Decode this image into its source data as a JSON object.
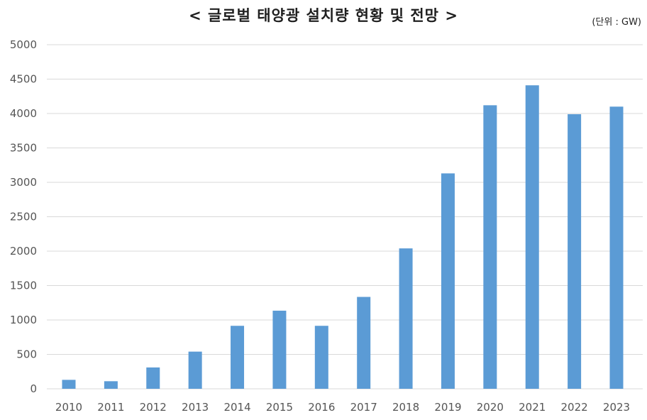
{
  "chart_data": {
    "type": "bar",
    "title": "< 글로벌 태양광 설치량 현황 및 전망 >",
    "unit": "(단위 : GW)",
    "categories": [
      "2010",
      "2011",
      "2012",
      "2013",
      "2014",
      "2015",
      "2016",
      "2017",
      "2018",
      "2019",
      "2020",
      "2021",
      "2022",
      "2023"
    ],
    "values": [
      130,
      110,
      310,
      540,
      915,
      1135,
      915,
      1335,
      2040,
      3130,
      4120,
      4410,
      3990,
      4100
    ],
    "ylim": [
      0,
      5000
    ],
    "yticks": [
      0,
      500,
      1000,
      1500,
      2000,
      2500,
      3000,
      3500,
      4000,
      4500,
      5000
    ],
    "grid": true,
    "colors": {
      "bar": "#5b9bd5",
      "grid": "#d9d9d9"
    }
  }
}
